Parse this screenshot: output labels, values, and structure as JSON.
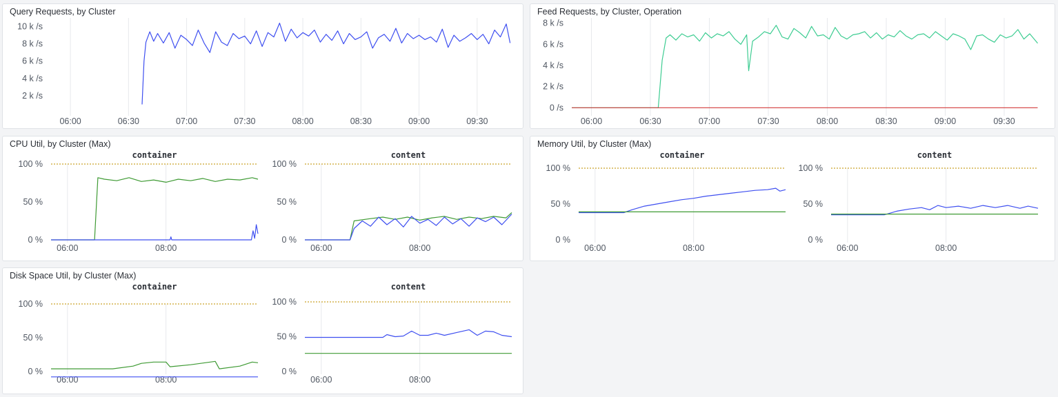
{
  "colors": {
    "blue": "#3d4ef0",
    "teal": "#3ccc91",
    "green": "#3e9a33",
    "red": "#d23a3a",
    "threshold": "#c9a227",
    "panel_bg": "#ffffff",
    "page_bg": "#f3f4f6"
  },
  "panels": {
    "query": {
      "title": "Query Requests, by Cluster"
    },
    "feed": {
      "title": "Feed Requests, by Cluster, Operation"
    },
    "cpu": {
      "title": "CPU Util, by Cluster (Max)"
    },
    "memory": {
      "title": "Memory Util, by Cluster (Max)"
    },
    "disk": {
      "title": "Disk Space Util, by Cluster (Max)"
    }
  },
  "chart_data": [
    {
      "id": "query",
      "type": "line",
      "title": "Query Requests, by Cluster",
      "x_unit": "time",
      "xlim": [
        "05:50",
        "09:50"
      ],
      "x_ticks": [
        "06:00",
        "06:30",
        "07:00",
        "07:30",
        "08:00",
        "08:30",
        "09:00",
        "09:30"
      ],
      "y_ticks": [
        "2 k /s",
        "4 k /s",
        "6 k /s",
        "8 k /s",
        "10 k /s"
      ],
      "ylim": [
        0,
        11000
      ],
      "grid": true,
      "series": [
        {
          "color": "#3d4ef0",
          "x": [
            "06:37",
            "06:38",
            "06:39",
            "06:41",
            "06:43",
            "06:45",
            "06:48",
            "06:51",
            "06:54",
            "06:57",
            "07:00",
            "07:03",
            "07:06",
            "07:09",
            "07:12",
            "07:15",
            "07:18",
            "07:21",
            "07:24",
            "07:27",
            "07:30",
            "07:33",
            "07:36",
            "07:39",
            "07:42",
            "07:45",
            "07:48",
            "07:51",
            "07:54",
            "07:57",
            "08:00",
            "08:03",
            "08:06",
            "08:09",
            "08:12",
            "08:15",
            "08:18",
            "08:21",
            "08:24",
            "08:27",
            "08:30",
            "08:33",
            "08:36",
            "08:39",
            "08:42",
            "08:45",
            "08:48",
            "08:51",
            "08:54",
            "08:57",
            "09:00",
            "09:03",
            "09:06",
            "09:09",
            "09:12",
            "09:15",
            "09:18",
            "09:21",
            "09:24",
            "09:27",
            "09:30",
            "09:33",
            "09:36",
            "09:39",
            "09:42",
            "09:45",
            "09:47"
          ],
          "y": [
            1000,
            6000,
            8200,
            9400,
            8300,
            9200,
            8100,
            9300,
            7500,
            9000,
            8500,
            7800,
            9600,
            8100,
            7000,
            9400,
            8200,
            7800,
            9200,
            8600,
            8900,
            8000,
            9500,
            7700,
            9300,
            8800,
            10400,
            8300,
            9700,
            8700,
            9300,
            8900,
            9600,
            8200,
            9100,
            8400,
            9500,
            8000,
            9200,
            8500,
            8800,
            9400,
            7500,
            8700,
            9100,
            8300,
            9800,
            8100,
            9200,
            8600,
            9000,
            8500,
            8800,
            8200,
            9700,
            7600,
            9000,
            8300,
            8700,
            9200,
            8500,
            9100,
            8000,
            9600,
            8800,
            10300,
            8100
          ]
        }
      ]
    },
    {
      "id": "feed",
      "type": "line",
      "title": "Feed Requests, by Cluster, Operation",
      "x_unit": "time",
      "xlim": [
        "05:50",
        "09:50"
      ],
      "x_ticks": [
        "06:00",
        "06:30",
        "07:00",
        "07:30",
        "08:00",
        "08:30",
        "09:00",
        "09:30"
      ],
      "y_ticks": [
        "0 /s",
        "2 k /s",
        "4 k /s",
        "6 k /s",
        "8 k /s"
      ],
      "ylim": [
        -500,
        8500
      ],
      "grid": true,
      "series": [
        {
          "color": "#3ccc91",
          "x": [
            "05:50",
            "06:34",
            "06:36",
            "06:38",
            "06:40",
            "06:43",
            "06:46",
            "06:49",
            "06:52",
            "06:55",
            "06:58",
            "07:01",
            "07:04",
            "07:07",
            "07:10",
            "07:13",
            "07:16",
            "07:19",
            "07:20",
            "07:22",
            "07:25",
            "07:28",
            "07:31",
            "07:34",
            "07:37",
            "07:40",
            "07:43",
            "07:46",
            "07:49",
            "07:52",
            "07:55",
            "07:58",
            "08:01",
            "08:04",
            "08:07",
            "08:10",
            "08:13",
            "08:16",
            "08:19",
            "08:22",
            "08:25",
            "08:28",
            "08:31",
            "08:34",
            "08:37",
            "08:40",
            "08:43",
            "08:46",
            "08:49",
            "08:52",
            "08:55",
            "08:58",
            "09:01",
            "09:04",
            "09:07",
            "09:10",
            "09:13",
            "09:16",
            "09:19",
            "09:22",
            "09:25",
            "09:28",
            "09:31",
            "09:34",
            "09:37",
            "09:40",
            "09:43",
            "09:47"
          ],
          "y": [
            0,
            0,
            4500,
            6600,
            6900,
            6400,
            7000,
            6700,
            6900,
            6300,
            7100,
            6600,
            7000,
            6800,
            7200,
            6500,
            6000,
            6900,
            3500,
            6300,
            6700,
            7200,
            7000,
            7800,
            6700,
            6500,
            7500,
            7100,
            6600,
            7700,
            6800,
            6900,
            6500,
            7600,
            6800,
            6500,
            6900,
            7000,
            7200,
            6600,
            7100,
            6500,
            6900,
            6700,
            7300,
            6800,
            6500,
            6900,
            7000,
            6600,
            7200,
            6800,
            6400,
            7000,
            6800,
            6500,
            5500,
            6800,
            6900,
            6500,
            6200,
            6900,
            6600,
            6800,
            7400,
            6500,
            7000,
            6100
          ]
        },
        {
          "color": "#d23a3a",
          "x": [
            "05:50",
            "09:47"
          ],
          "y": [
            0,
            0
          ]
        }
      ]
    },
    {
      "id": "cpu-container",
      "type": "line",
      "title": "container",
      "x_unit": "time",
      "xlim": [
        "05:40",
        "09:52"
      ],
      "x_ticks": [
        "06:00",
        "08:00"
      ],
      "y_ticks": [
        "0 %",
        "50 %",
        "100 %"
      ],
      "ylim": [
        0,
        100
      ],
      "threshold": 100,
      "series": [
        {
          "color": "#3e9a33",
          "x": [
            "05:40",
            "06:33",
            "06:37",
            "06:45",
            "07:00",
            "07:15",
            "07:30",
            "07:45",
            "08:00",
            "08:15",
            "08:30",
            "08:45",
            "09:00",
            "09:15",
            "09:30",
            "09:45",
            "09:52"
          ],
          "y": [
            0,
            0,
            82,
            80,
            78,
            82,
            77,
            79,
            76,
            80,
            78,
            81,
            77,
            80,
            79,
            82,
            80
          ]
        },
        {
          "color": "#3d4ef0",
          "x": [
            "05:40",
            "08:05",
            "08:06",
            "08:07",
            "09:44",
            "09:46",
            "09:48",
            "09:50",
            "09:52"
          ],
          "y": [
            0,
            0,
            4,
            0,
            0,
            12,
            2,
            20,
            8
          ]
        }
      ]
    },
    {
      "id": "cpu-content",
      "type": "line",
      "title": "content",
      "x_unit": "time",
      "xlim": [
        "05:40",
        "09:52"
      ],
      "x_ticks": [
        "06:00",
        "08:00"
      ],
      "y_ticks": [
        "0 %",
        "50 %",
        "100 %"
      ],
      "ylim": [
        0,
        100
      ],
      "threshold": 100,
      "series": [
        {
          "color": "#3e9a33",
          "x": [
            "05:40",
            "06:35",
            "06:40",
            "07:00",
            "07:15",
            "07:30",
            "07:45",
            "08:00",
            "08:15",
            "08:30",
            "08:45",
            "09:00",
            "09:15",
            "09:30",
            "09:45",
            "09:52"
          ],
          "y": [
            0,
            0,
            25,
            28,
            30,
            27,
            30,
            26,
            29,
            31,
            27,
            30,
            28,
            31,
            29,
            36
          ]
        },
        {
          "color": "#3d4ef0",
          "x": [
            "05:40",
            "06:35",
            "06:40",
            "06:50",
            "07:00",
            "07:10",
            "07:20",
            "07:30",
            "07:40",
            "07:50",
            "08:00",
            "08:10",
            "08:20",
            "08:30",
            "08:40",
            "08:50",
            "09:00",
            "09:10",
            "09:20",
            "09:30",
            "09:40",
            "09:52"
          ],
          "y": [
            0,
            0,
            15,
            25,
            18,
            30,
            20,
            28,
            17,
            31,
            22,
            27,
            19,
            30,
            21,
            28,
            18,
            29,
            24,
            30,
            20,
            34
          ]
        }
      ]
    },
    {
      "id": "memory-container",
      "type": "line",
      "title": "container",
      "x_unit": "time",
      "xlim": [
        "05:40",
        "09:52"
      ],
      "x_ticks": [
        "06:00",
        "08:00"
      ],
      "y_ticks": [
        "0 %",
        "50 %",
        "100 %"
      ],
      "ylim": [
        0,
        100
      ],
      "threshold": 100,
      "series": [
        {
          "color": "#3d4ef0",
          "x": [
            "05:40",
            "06:35",
            "06:45",
            "07:00",
            "07:15",
            "07:30",
            "07:45",
            "08:00",
            "08:15",
            "08:30",
            "08:45",
            "09:00",
            "09:15",
            "09:30",
            "09:40",
            "09:45",
            "09:52"
          ],
          "y": [
            38,
            38,
            42,
            47,
            50,
            53,
            56,
            58,
            61,
            63,
            65,
            67,
            69,
            70,
            72,
            68,
            70
          ]
        },
        {
          "color": "#3e9a33",
          "x": [
            "05:40",
            "09:52"
          ],
          "y": [
            39,
            39
          ]
        }
      ]
    },
    {
      "id": "memory-content",
      "type": "line",
      "title": "content",
      "x_unit": "time",
      "xlim": [
        "05:40",
        "09:52"
      ],
      "x_ticks": [
        "06:00",
        "08:00"
      ],
      "y_ticks": [
        "0 %",
        "50 %",
        "100 %"
      ],
      "ylim": [
        0,
        100
      ],
      "threshold": 100,
      "series": [
        {
          "color": "#3d4ef0",
          "x": [
            "05:40",
            "06:45",
            "07:00",
            "07:15",
            "07:30",
            "07:40",
            "07:50",
            "08:00",
            "08:15",
            "08:30",
            "08:45",
            "09:00",
            "09:15",
            "09:30",
            "09:40",
            "09:52"
          ],
          "y": [
            35,
            35,
            40,
            43,
            45,
            42,
            48,
            45,
            47,
            44,
            48,
            45,
            48,
            44,
            47,
            44
          ]
        },
        {
          "color": "#3e9a33",
          "x": [
            "05:40",
            "09:52"
          ],
          "y": [
            36,
            36
          ]
        }
      ]
    },
    {
      "id": "disk-container",
      "type": "line",
      "title": "container",
      "x_unit": "time",
      "xlim": [
        "05:40",
        "09:52"
      ],
      "x_ticks": [
        "06:00",
        "08:00"
      ],
      "y_ticks": [
        "0 %",
        "50 %",
        "100 %"
      ],
      "ylim": [
        0,
        100
      ],
      "threshold": 100,
      "series": [
        {
          "color": "#3e9a33",
          "x": [
            "05:40",
            "06:50",
            "06:55",
            "07:20",
            "07:30",
            "07:45",
            "08:00",
            "08:05",
            "08:30",
            "09:00",
            "09:05",
            "09:30",
            "09:45",
            "09:52"
          ],
          "y": [
            4,
            4,
            4,
            8,
            12,
            14,
            14,
            7,
            10,
            15,
            4,
            8,
            14,
            13
          ]
        },
        {
          "color": "#3d4ef0",
          "x": [
            "05:40",
            "09:52"
          ],
          "y": [
            -8,
            -8
          ]
        }
      ]
    },
    {
      "id": "disk-content",
      "type": "line",
      "title": "content",
      "x_unit": "time",
      "xlim": [
        "05:40",
        "09:52"
      ],
      "x_ticks": [
        "06:00",
        "08:00"
      ],
      "y_ticks": [
        "0 %",
        "50 %",
        "100 %"
      ],
      "ylim": [
        0,
        100
      ],
      "threshold": 100,
      "series": [
        {
          "color": "#3d4ef0",
          "x": [
            "05:40",
            "07:15",
            "07:20",
            "07:30",
            "07:40",
            "07:50",
            "08:00",
            "08:10",
            "08:20",
            "08:30",
            "08:45",
            "09:00",
            "09:10",
            "09:20",
            "09:30",
            "09:40",
            "09:52"
          ],
          "y": [
            49,
            49,
            53,
            50,
            51,
            58,
            52,
            52,
            55,
            52,
            56,
            60,
            52,
            58,
            57,
            52,
            50
          ]
        },
        {
          "color": "#3e9a33",
          "x": [
            "05:40",
            "09:52"
          ],
          "y": [
            26,
            26
          ]
        }
      ]
    }
  ]
}
